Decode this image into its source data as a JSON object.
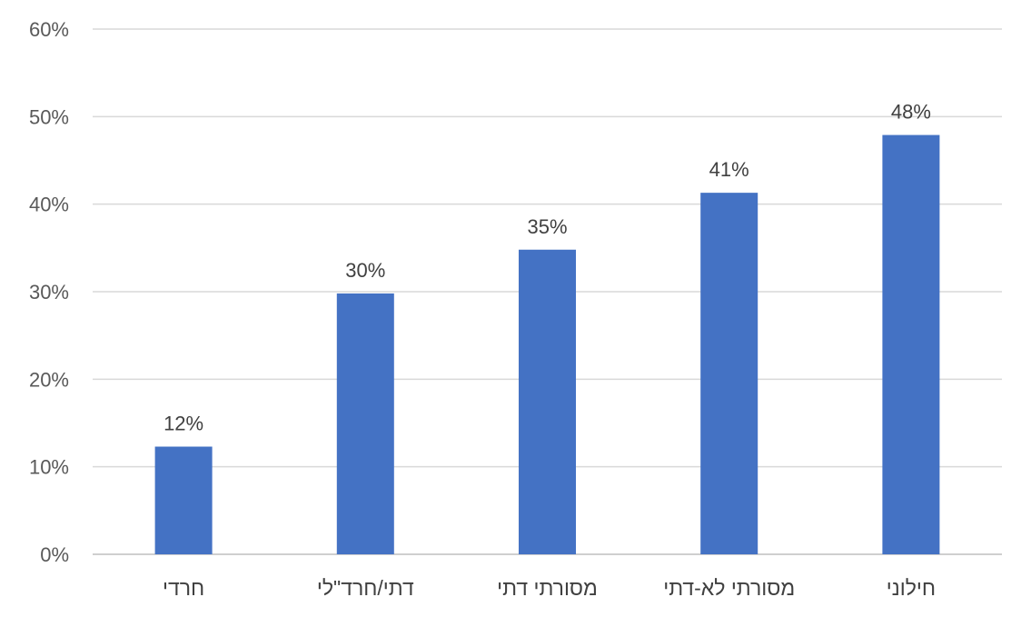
{
  "chart_data": {
    "type": "bar",
    "title": "",
    "xlabel": "",
    "ylabel": "",
    "categories": [
      "חרדי",
      "דתי/חרד\"לי",
      "מסורתי דתי",
      "מסורתי לא-דתי",
      "חילוני"
    ],
    "values": [
      12.3,
      29.8,
      34.8,
      41.3,
      47.9
    ],
    "data_labels": [
      "12%",
      "30%",
      "35%",
      "41%",
      "48%"
    ],
    "ylim": [
      0,
      60
    ],
    "yticks": [
      0,
      10,
      20,
      30,
      40,
      50,
      60
    ],
    "ytick_labels": [
      "0%",
      "10%",
      "20%",
      "30%",
      "40%",
      "50%",
      "60%"
    ],
    "bar_color": "#4472c4",
    "grid": true,
    "legend": "none"
  }
}
